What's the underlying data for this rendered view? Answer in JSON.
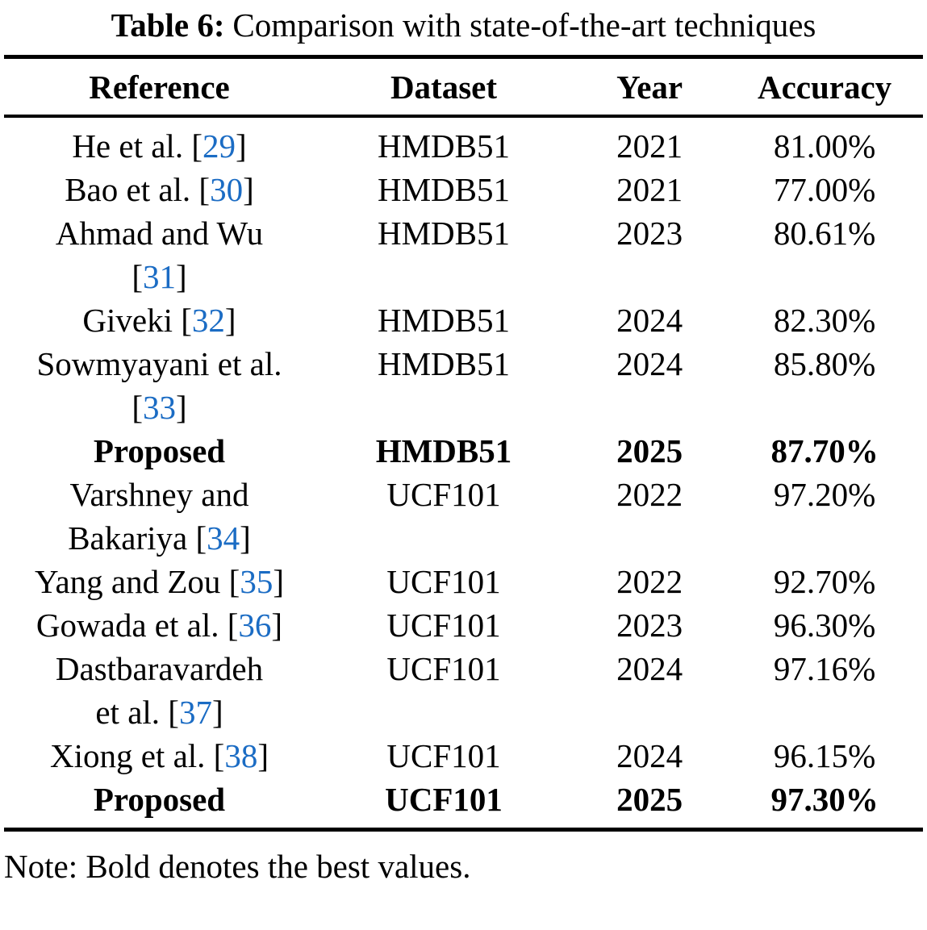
{
  "caption": {
    "label": "Table 6:",
    "text": "Comparison with state-of-the-art techniques"
  },
  "table": {
    "columns": [
      "Reference",
      "Dataset",
      "Year",
      "Accuracy"
    ],
    "rows": [
      {
        "reference_lines": [
          "He et al. [29]"
        ],
        "dataset": "HMDB51",
        "year": "2021",
        "accuracy": "81.00%",
        "bold": false
      },
      {
        "reference_lines": [
          "Bao et al. [30]"
        ],
        "dataset": "HMDB51",
        "year": "2021",
        "accuracy": "77.00%",
        "bold": false
      },
      {
        "reference_lines": [
          "Ahmad and Wu",
          "[31]"
        ],
        "dataset": "HMDB51",
        "year": "2023",
        "accuracy": "80.61%",
        "bold": false
      },
      {
        "reference_lines": [
          "Giveki [32]"
        ],
        "dataset": "HMDB51",
        "year": "2024",
        "accuracy": "82.30%",
        "bold": false
      },
      {
        "reference_lines": [
          "Sowmyayani et al.",
          "[33]"
        ],
        "dataset": "HMDB51",
        "year": "2024",
        "accuracy": "85.80%",
        "bold": false
      },
      {
        "reference_lines": [
          "Proposed"
        ],
        "dataset": "HMDB51",
        "year": "2025",
        "accuracy": "87.70%",
        "bold": true
      },
      {
        "reference_lines": [
          "Varshney and",
          "Bakariya [34]"
        ],
        "dataset": "UCF101",
        "year": "2022",
        "accuracy": "97.20%",
        "bold": false
      },
      {
        "reference_lines": [
          "Yang and Zou [35]"
        ],
        "dataset": "UCF101",
        "year": "2022",
        "accuracy": "92.70%",
        "bold": false
      },
      {
        "reference_lines": [
          "Gowada et al. [36]"
        ],
        "dataset": "UCF101",
        "year": "2023",
        "accuracy": "96.30%",
        "bold": false
      },
      {
        "reference_lines": [
          "Dastbaravardeh",
          "et al. [37]"
        ],
        "dataset": "UCF101",
        "year": "2024",
        "accuracy": "97.16%",
        "bold": false
      },
      {
        "reference_lines": [
          "Xiong et al. [38]"
        ],
        "dataset": "UCF101",
        "year": "2024",
        "accuracy": "96.15%",
        "bold": false
      },
      {
        "reference_lines": [
          "Proposed"
        ],
        "dataset": "UCF101",
        "year": "2025",
        "accuracy": "97.30%",
        "bold": true
      }
    ]
  },
  "note": "Note: Bold denotes the best values.",
  "colors": {
    "citation_link": "#1b6cc4",
    "text": "#000000",
    "rule": "#000000",
    "background": "#ffffff"
  }
}
